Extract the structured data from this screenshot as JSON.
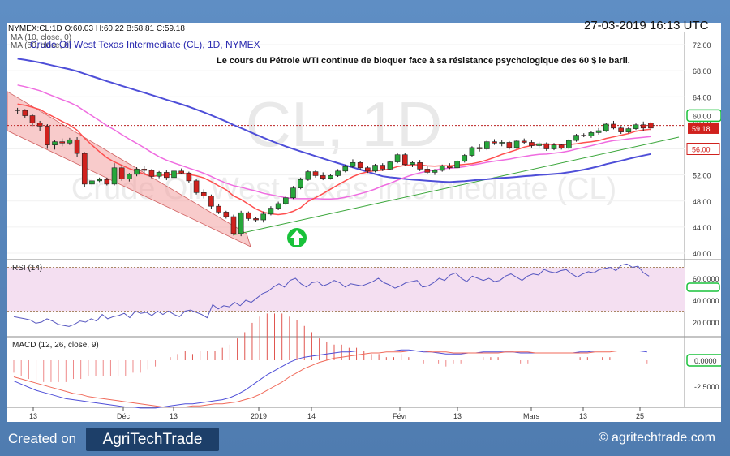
{
  "header": {
    "quote": "NYMEX:CL:1D O:60.03 H:60.22 B:58.81 C:59.18",
    "datetime": "27-03-2019 16:13 UTC",
    "ma10": "MA (10, close, 0)",
    "ma50": "MA (50, close, 0)",
    "instrument": "Crude Oil West Texas Intermediate (CL), 1D, NYMEX",
    "commentary": "Le cours du Pétrole WTI continue de bloquer face à sa résistance psychologique des 60 $ le baril."
  },
  "watermark": {
    "big": "CL, 1D",
    "name": "Crude Oil West Texas Intermediate (CL)"
  },
  "footer": {
    "created_on": "Created on",
    "logo": "AgriTechTrade",
    "site": "© agritechtrade.com"
  },
  "colors": {
    "up": "#27a63b",
    "down": "#d0211d",
    "ma10": "#ff4f4f",
    "ma20": "#ef6ce0",
    "ma50": "#4e4ed8",
    "trend": "#3aa63a",
    "channel": "#f3a0a0"
  },
  "icons": {
    "up_arrow": "up-arrow-circle-icon"
  },
  "chart_data": [
    {
      "type": "candlestick",
      "panel": "price",
      "ylim": [
        38,
        74
      ],
      "y_ticks": [
        "72.00",
        "68.00",
        "64.00",
        "60.00",
        "56.00",
        "52.00",
        "48.00",
        "44.00",
        "40.00"
      ],
      "x_ticks": [
        "13",
        "Déc",
        "13",
        "2019",
        "14",
        "Févr",
        "13",
        "Mars",
        "13",
        "25"
      ],
      "last_price_label": "59.18",
      "level_labels": [
        "60.00",
        "56.00"
      ],
      "candles": [
        [
          62.0,
          62.3,
          61.4,
          61.9
        ],
        [
          61.9,
          62.1,
          60.8,
          61.1
        ],
        [
          61.1,
          61.4,
          59.5,
          60.0
        ],
        [
          60.0,
          60.3,
          58.7,
          59.5
        ],
        [
          59.5,
          59.8,
          56.0,
          56.6
        ],
        [
          56.6,
          57.3,
          55.9,
          57.1
        ],
        [
          57.1,
          57.6,
          56.4,
          56.9
        ],
        [
          56.9,
          57.7,
          56.6,
          57.4
        ],
        [
          57.4,
          57.8,
          54.8,
          55.3
        ],
        [
          55.3,
          55.5,
          50.2,
          50.6
        ],
        [
          50.6,
          51.4,
          50.1,
          51.1
        ],
        [
          51.1,
          51.6,
          50.9,
          51.3
        ],
        [
          51.3,
          51.6,
          50.4,
          50.6
        ],
        [
          50.6,
          53.8,
          50.4,
          53.1
        ],
        [
          53.1,
          53.5,
          51.1,
          51.4
        ],
        [
          51.4,
          52.3,
          51.0,
          52.1
        ],
        [
          52.1,
          53.2,
          51.8,
          52.9
        ],
        [
          52.9,
          53.4,
          52.3,
          52.7
        ],
        [
          52.7,
          52.9,
          51.5,
          51.8
        ],
        [
          51.8,
          52.6,
          51.5,
          52.4
        ],
        [
          52.4,
          52.8,
          51.2,
          51.6
        ],
        [
          51.6,
          53.1,
          51.3,
          52.6
        ],
        [
          52.6,
          53.0,
          52.1,
          52.3
        ],
        [
          52.3,
          52.5,
          50.8,
          51.1
        ],
        [
          51.1,
          51.4,
          49.0,
          49.3
        ],
        [
          49.3,
          49.8,
          48.4,
          48.8
        ],
        [
          48.8,
          49.0,
          46.8,
          47.2
        ],
        [
          47.2,
          47.6,
          46.0,
          46.3
        ],
        [
          46.3,
          46.5,
          45.3,
          45.6
        ],
        [
          45.6,
          45.9,
          42.7,
          43.0
        ],
        [
          43.0,
          46.5,
          42.6,
          46.2
        ],
        [
          46.2,
          46.4,
          45.0,
          45.3
        ],
        [
          45.3,
          45.6,
          44.8,
          45.1
        ],
        [
          45.1,
          46.4,
          44.7,
          46.0
        ],
        [
          46.0,
          47.2,
          45.8,
          46.9
        ],
        [
          46.9,
          47.9,
          46.6,
          47.6
        ],
        [
          47.6,
          48.8,
          47.4,
          48.5
        ],
        [
          48.5,
          50.3,
          48.3,
          50.0
        ],
        [
          50.0,
          51.6,
          49.8,
          51.3
        ],
        [
          51.3,
          52.7,
          51.1,
          52.5
        ],
        [
          52.5,
          52.8,
          51.6,
          51.9
        ],
        [
          51.9,
          52.4,
          51.2,
          51.5
        ],
        [
          51.5,
          52.1,
          51.3,
          51.9
        ],
        [
          51.9,
          52.9,
          51.7,
          52.6
        ],
        [
          52.6,
          53.6,
          52.4,
          53.3
        ],
        [
          53.3,
          54.4,
          53.1,
          53.9
        ],
        [
          53.9,
          54.1,
          52.8,
          53.1
        ],
        [
          53.1,
          53.4,
          52.3,
          52.6
        ],
        [
          52.6,
          53.7,
          52.4,
          53.5
        ],
        [
          53.5,
          53.8,
          52.6,
          52.9
        ],
        [
          52.9,
          54.2,
          52.7,
          54.0
        ],
        [
          54.0,
          55.3,
          53.8,
          55.1
        ],
        [
          55.1,
          55.4,
          53.4,
          53.6
        ],
        [
          53.6,
          54.1,
          53.2,
          53.9
        ],
        [
          53.9,
          54.3,
          52.6,
          52.9
        ],
        [
          52.9,
          53.3,
          52.1,
          52.4
        ],
        [
          52.4,
          52.9,
          52.0,
          52.7
        ],
        [
          52.7,
          53.6,
          52.5,
          53.4
        ],
        [
          53.4,
          53.8,
          52.9,
          53.1
        ],
        [
          53.1,
          54.3,
          53.0,
          54.1
        ],
        [
          54.1,
          55.2,
          53.9,
          55.0
        ],
        [
          55.0,
          56.4,
          54.8,
          56.2
        ],
        [
          56.2,
          56.8,
          55.6,
          56.0
        ],
        [
          56.0,
          57.3,
          55.8,
          57.1
        ],
        [
          57.1,
          57.5,
          56.6,
          56.9
        ],
        [
          56.9,
          57.3,
          56.4,
          57.0
        ],
        [
          57.0,
          57.2,
          55.9,
          56.2
        ],
        [
          56.2,
          57.4,
          56.0,
          57.2
        ],
        [
          57.2,
          57.6,
          56.8,
          57.0
        ],
        [
          57.0,
          57.3,
          56.2,
          56.5
        ],
        [
          56.5,
          57.1,
          56.2,
          56.8
        ],
        [
          56.8,
          57.0,
          55.7,
          56.0
        ],
        [
          56.0,
          56.9,
          55.8,
          56.6
        ],
        [
          56.6,
          56.8,
          55.9,
          56.1
        ],
        [
          56.1,
          57.5,
          55.9,
          57.3
        ],
        [
          57.3,
          58.3,
          57.1,
          58.1
        ],
        [
          58.1,
          58.4,
          57.8,
          58.0
        ],
        [
          58.0,
          58.8,
          57.7,
          58.5
        ],
        [
          58.5,
          59.2,
          58.2,
          58.8
        ],
        [
          58.8,
          60.0,
          58.6,
          59.8
        ],
        [
          59.8,
          60.3,
          59.0,
          59.2
        ],
        [
          59.2,
          59.5,
          58.3,
          58.6
        ],
        [
          58.6,
          59.3,
          58.4,
          59.1
        ],
        [
          59.1,
          59.9,
          58.9,
          59.7
        ],
        [
          59.7,
          60.2,
          58.8,
          59.2
        ],
        [
          60.0,
          60.2,
          58.8,
          59.2
        ]
      ]
    },
    {
      "type": "line",
      "panel": "rsi",
      "title": "RSI (14)",
      "ylim": [
        10,
        82
      ],
      "y_ticks": [
        "60.0000",
        "40.0000",
        "20.0000"
      ],
      "bands": [
        30,
        70
      ],
      "values": [
        25,
        24,
        23,
        22,
        19,
        20,
        23,
        21,
        18,
        17,
        16,
        18,
        21,
        20,
        23,
        21,
        27,
        23,
        25,
        26,
        28,
        24,
        30,
        28,
        29,
        26,
        30,
        27,
        30,
        27,
        25,
        30,
        31,
        29,
        27,
        24,
        36,
        32,
        35,
        34,
        38,
        35,
        40,
        38,
        42,
        46,
        48,
        52,
        55,
        52,
        58,
        60,
        55,
        52,
        56,
        57,
        53,
        55,
        58,
        56,
        52,
        55,
        54,
        53,
        55,
        57,
        60,
        56,
        54,
        51,
        53,
        56,
        57,
        58,
        52,
        53,
        56,
        60,
        58,
        63,
        65,
        60,
        57,
        62,
        60,
        58,
        60,
        57,
        58,
        62,
        64,
        61,
        58,
        62,
        64,
        63,
        68,
        66,
        65,
        67,
        68,
        64,
        61,
        64,
        66,
        65,
        68,
        69,
        70,
        67,
        72,
        73,
        70,
        71,
        65,
        62
      ]
    },
    {
      "type": "line+bar",
      "panel": "macd",
      "title": "MACD (12, 26, close, 9)",
      "ylim": [
        -5.2,
        1.6
      ],
      "y_ticks": [
        "0.0000",
        "-2.5000"
      ],
      "macd": [
        -2.0,
        -2.3,
        -2.6,
        -2.9,
        -3.1,
        -3.3,
        -3.5,
        -3.7,
        -3.8,
        -3.9,
        -4.0,
        -4.1,
        -4.2,
        -4.3,
        -4.4,
        -4.5,
        -4.5,
        -4.6,
        -4.6,
        -4.6,
        -4.5,
        -4.4,
        -4.3,
        -4.2,
        -4.2,
        -4.1,
        -4.0,
        -3.9,
        -3.8,
        -3.6,
        -3.3,
        -2.9,
        -2.4,
        -1.9,
        -1.4,
        -1.0,
        -0.6,
        -0.2,
        0.1,
        0.3,
        0.4,
        0.5,
        0.6,
        0.7,
        0.8,
        0.8,
        0.9,
        0.9,
        0.9,
        0.9,
        0.9,
        0.9,
        1.0,
        1.0,
        0.9,
        0.8,
        0.8,
        0.7,
        0.6,
        0.6,
        0.6,
        0.7,
        0.7,
        0.8,
        0.8,
        0.8,
        0.8,
        0.8,
        0.7,
        0.7,
        0.7,
        0.7,
        0.7,
        0.7,
        0.7,
        0.7,
        0.8,
        0.8,
        0.9,
        0.9,
        0.9,
        0.9,
        0.9,
        0.9,
        0.9,
        0.8
      ],
      "signal": [
        -1.6,
        -1.8,
        -2.0,
        -2.2,
        -2.4,
        -2.6,
        -2.8,
        -3.0,
        -3.2,
        -3.3,
        -3.5,
        -3.6,
        -3.7,
        -3.8,
        -3.9,
        -4.0,
        -4.1,
        -4.2,
        -4.3,
        -4.4,
        -4.5,
        -4.5,
        -4.5,
        -4.5,
        -4.4,
        -4.4,
        -4.3,
        -4.2,
        -4.2,
        -4.1,
        -4.0,
        -3.8,
        -3.6,
        -3.3,
        -2.9,
        -2.5,
        -2.1,
        -1.6,
        -1.2,
        -0.8,
        -0.5,
        -0.2,
        0.0,
        0.2,
        0.3,
        0.4,
        0.5,
        0.6,
        0.7,
        0.7,
        0.8,
        0.8,
        0.8,
        0.9,
        0.9,
        0.9,
        0.8,
        0.8,
        0.8,
        0.7,
        0.7,
        0.7,
        0.7,
        0.7,
        0.7,
        0.7,
        0.8,
        0.8,
        0.8,
        0.8,
        0.7,
        0.7,
        0.7,
        0.7,
        0.7,
        0.7,
        0.7,
        0.7,
        0.8,
        0.8,
        0.8,
        0.9,
        0.9,
        0.9,
        0.9,
        0.9
      ]
    }
  ]
}
